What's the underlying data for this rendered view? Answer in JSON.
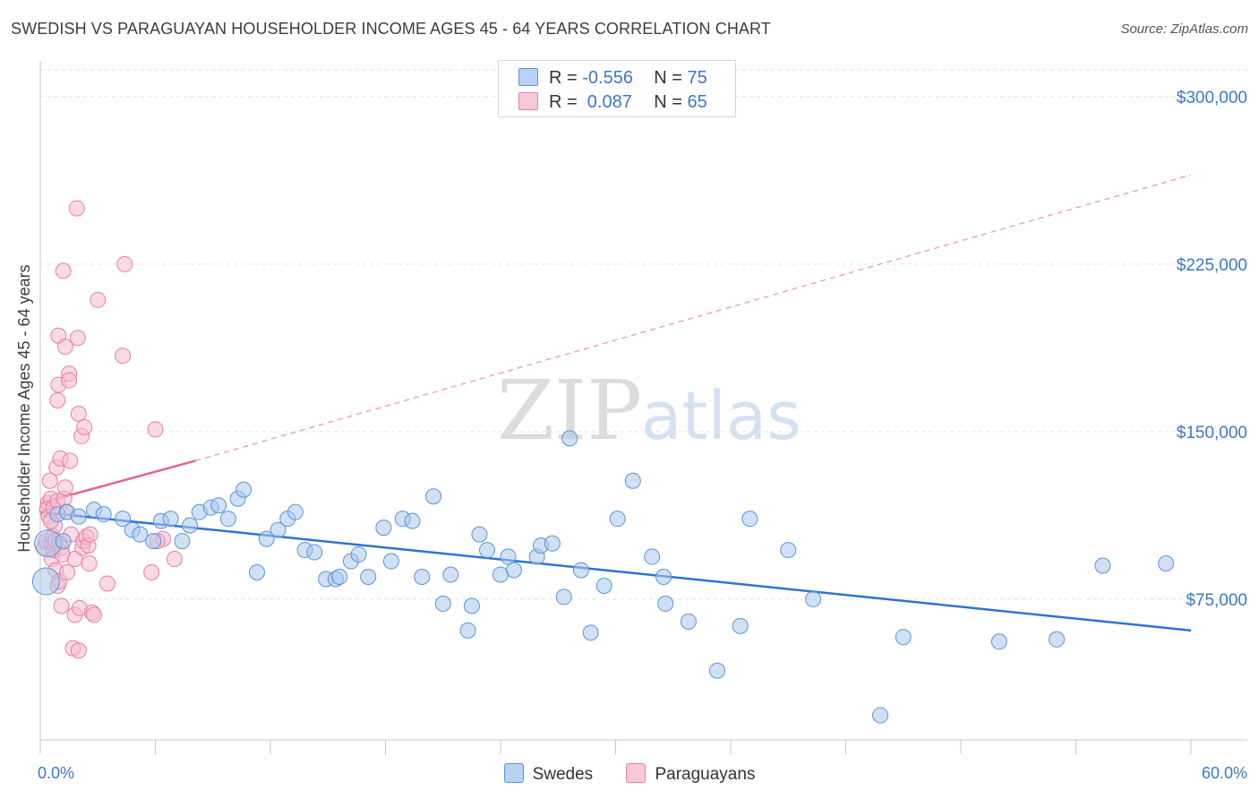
{
  "header": {
    "title": "SWEDISH VS PARAGUAYAN HOUSEHOLDER INCOME AGES 45 - 64 YEARS CORRELATION CHART",
    "source": "Source: ZipAtlas.com"
  },
  "watermark": {
    "zip": "ZIP",
    "atlas": "atlas"
  },
  "legend": {
    "rows": [
      {
        "r_label": "R = ",
        "r_value": "-0.556",
        "n_label": "N = ",
        "n_value": "75"
      },
      {
        "r_label": "R = ",
        "r_value": " 0.087",
        "n_label": "N = ",
        "n_value": "65"
      }
    ]
  },
  "bottom_legend": {
    "swedes": "Swedes",
    "paraguayans": "Paraguayans"
  },
  "colors": {
    "swedes_fill": "#a9c8ef",
    "swedes_stroke": "#5b93d6",
    "swedes_line": "#2f74d0",
    "paraguayans_fill": "#f6bcd0",
    "paraguayans_stroke": "#e77fa3",
    "paraguayans_line": "#e26490",
    "accent_text": "#3b78c9"
  },
  "chart_data": {
    "type": "scatter",
    "title": "SWEDISH VS PARAGUAYAN HOUSEHOLDER INCOME AGES 45 - 64 YEARS CORRELATION CHART",
    "xlabel": "",
    "ylabel": "Householder Income Ages 45 - 64 years",
    "xlim": [
      0,
      60
    ],
    "ylim": [
      12000,
      312000
    ],
    "x_tick_labels": [
      "0.0%",
      "60.0%"
    ],
    "y_ticks": [
      75000,
      150000,
      225000,
      300000
    ],
    "y_tick_labels": [
      "$75,000",
      "$150,000",
      "$225,000",
      "$300,000"
    ],
    "grid": true,
    "legend_placement": "top-center",
    "series": [
      {
        "name": "Swedes",
        "r": -0.556,
        "n": 75,
        "trend": {
          "x": [
            0,
            60
          ],
          "y": [
            114000,
            61000
          ]
        },
        "points": [
          [
            0.3,
            83000
          ],
          [
            0.4,
            100000
          ],
          [
            0.9,
            113000
          ],
          [
            1.4,
            114000
          ],
          [
            2.0,
            112000
          ],
          [
            2.8,
            115000
          ],
          [
            3.3,
            113000
          ],
          [
            4.3,
            111000
          ],
          [
            4.8,
            106000
          ],
          [
            5.2,
            104000
          ],
          [
            5.9,
            101000
          ],
          [
            6.3,
            110000
          ],
          [
            6.8,
            111000
          ],
          [
            7.4,
            101000
          ],
          [
            7.8,
            108000
          ],
          [
            8.3,
            114000
          ],
          [
            8.9,
            116000
          ],
          [
            9.3,
            117000
          ],
          [
            9.8,
            111000
          ],
          [
            10.3,
            120000
          ],
          [
            10.6,
            124000
          ],
          [
            11.3,
            87000
          ],
          [
            11.8,
            102000
          ],
          [
            12.4,
            106000
          ],
          [
            12.9,
            111000
          ],
          [
            13.3,
            114000
          ],
          [
            13.8,
            97000
          ],
          [
            14.3,
            96000
          ],
          [
            14.9,
            84000
          ],
          [
            15.4,
            84000
          ],
          [
            15.6,
            85000
          ],
          [
            16.2,
            92000
          ],
          [
            16.6,
            95000
          ],
          [
            17.1,
            85000
          ],
          [
            17.9,
            107000
          ],
          [
            18.3,
            92000
          ],
          [
            18.9,
            111000
          ],
          [
            19.4,
            110000
          ],
          [
            19.9,
            85000
          ],
          [
            20.5,
            121000
          ],
          [
            21.0,
            73000
          ],
          [
            21.4,
            86000
          ],
          [
            22.3,
            61000
          ],
          [
            22.5,
            72000
          ],
          [
            22.9,
            104000
          ],
          [
            23.3,
            97000
          ],
          [
            24.0,
            86000
          ],
          [
            24.4,
            94000
          ],
          [
            24.7,
            88000
          ],
          [
            25.9,
            94000
          ],
          [
            26.1,
            99000
          ],
          [
            26.7,
            100000
          ],
          [
            27.3,
            76000
          ],
          [
            27.6,
            147000
          ],
          [
            28.2,
            88000
          ],
          [
            28.7,
            60000
          ],
          [
            29.4,
            81000
          ],
          [
            30.1,
            111000
          ],
          [
            30.9,
            128000
          ],
          [
            31.9,
            94000
          ],
          [
            32.5,
            85000
          ],
          [
            32.6,
            73000
          ],
          [
            33.8,
            65000
          ],
          [
            35.3,
            43000
          ],
          [
            36.5,
            63000
          ],
          [
            37.0,
            111000
          ],
          [
            39.0,
            97000
          ],
          [
            40.3,
            75000
          ],
          [
            43.8,
            23000
          ],
          [
            45.0,
            58000
          ],
          [
            50.0,
            56000
          ],
          [
            53.0,
            57000
          ],
          [
            55.4,
            90000
          ],
          [
            58.7,
            91000
          ],
          [
            1.2,
            101000
          ]
        ]
      },
      {
        "name": "Paraguayans",
        "r": 0.087,
        "n": 65,
        "trend": {
          "x": [
            0,
            8.1
          ],
          "y": [
            118000,
            137000
          ]
        },
        "trend_extension": {
          "x": [
            8.1,
            60
          ],
          "y": [
            137000,
            265000
          ]
        },
        "points": [
          [
            0.2,
            98000
          ],
          [
            0.3,
            101000
          ],
          [
            0.35,
            115000
          ],
          [
            0.4,
            118000
          ],
          [
            0.45,
            112000
          ],
          [
            0.5,
            128000
          ],
          [
            0.55,
            120000
          ],
          [
            0.6,
            100000
          ],
          [
            0.6,
            93000
          ],
          [
            0.65,
            103000
          ],
          [
            0.7,
            116000
          ],
          [
            0.7,
            97000
          ],
          [
            0.75,
            108000
          ],
          [
            0.8,
            88000
          ],
          [
            0.8,
            101000
          ],
          [
            0.85,
            134000
          ],
          [
            0.9,
            119000
          ],
          [
            0.9,
            164000
          ],
          [
            0.9,
            81000
          ],
          [
            0.95,
            171000
          ],
          [
            0.95,
            193000
          ],
          [
            1.0,
            100000
          ],
          [
            1.0,
            83000
          ],
          [
            1.05,
            138000
          ],
          [
            1.1,
            72000
          ],
          [
            1.1,
            98000
          ],
          [
            1.15,
            95000
          ],
          [
            1.2,
            222000
          ],
          [
            1.25,
            120000
          ],
          [
            1.3,
            188000
          ],
          [
            1.3,
            125000
          ],
          [
            1.35,
            114000
          ],
          [
            1.4,
            87000
          ],
          [
            1.5,
            176000
          ],
          [
            1.5,
            173000
          ],
          [
            1.55,
            137000
          ],
          [
            1.6,
            104000
          ],
          [
            1.7,
            53000
          ],
          [
            1.8,
            68000
          ],
          [
            1.8,
            93000
          ],
          [
            1.9,
            250000
          ],
          [
            1.95,
            192000
          ],
          [
            2.0,
            158000
          ],
          [
            2.0,
            52000
          ],
          [
            2.05,
            71000
          ],
          [
            2.15,
            148000
          ],
          [
            2.2,
            98000
          ],
          [
            2.25,
            101000
          ],
          [
            2.3,
            152000
          ],
          [
            2.4,
            103000
          ],
          [
            2.5,
            99000
          ],
          [
            2.55,
            91000
          ],
          [
            2.6,
            104000
          ],
          [
            2.7,
            69000
          ],
          [
            2.8,
            68000
          ],
          [
            3.0,
            209000
          ],
          [
            3.5,
            82000
          ],
          [
            4.3,
            184000
          ],
          [
            4.4,
            225000
          ],
          [
            5.8,
            87000
          ],
          [
            6.0,
            151000
          ],
          [
            6.4,
            102000
          ],
          [
            6.1,
            101000
          ],
          [
            7.0,
            93000
          ],
          [
            0.55,
            110000
          ]
        ]
      }
    ]
  }
}
